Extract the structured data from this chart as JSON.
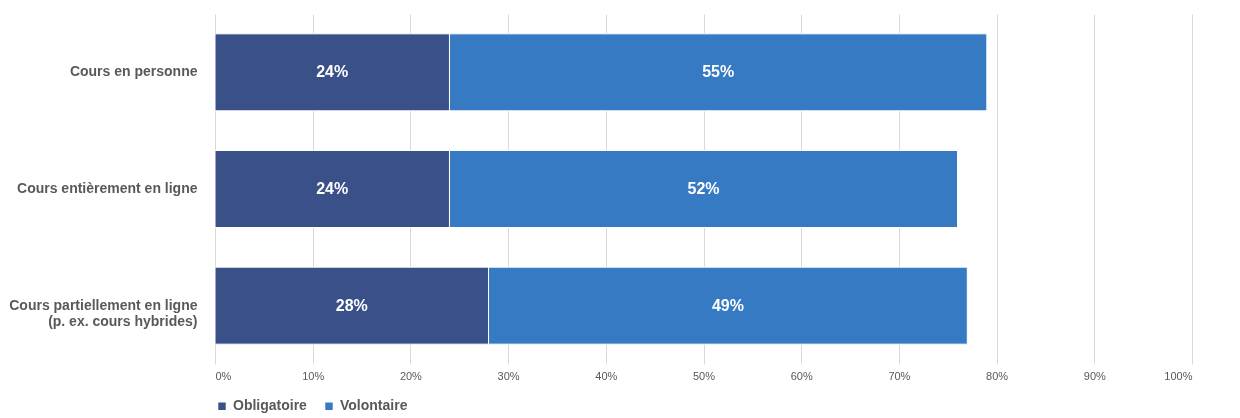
{
  "chart_data": {
    "type": "bar",
    "orientation": "horizontal",
    "stacked": true,
    "categories": [
      "Cours en personne",
      "Cours entièrement en ligne",
      "Cours partiellement en ligne\n(p. ex. cours hybrides)"
    ],
    "series": [
      {
        "name": "Obligatoire",
        "color": "#3a5088",
        "values": [
          24,
          24,
          28
        ],
        "value_labels": [
          "24%",
          "24%",
          "28%"
        ]
      },
      {
        "name": "Volontaire",
        "color": "#357ac2",
        "values": [
          55,
          52,
          49
        ],
        "value_labels": [
          "55%",
          "52%",
          "49%"
        ]
      }
    ],
    "xlim": [
      0,
      100
    ],
    "xticks": [
      {
        "value": 0,
        "label": "0%"
      },
      {
        "value": 10,
        "label": "10%"
      },
      {
        "value": 20,
        "label": "20%"
      },
      {
        "value": 30,
        "label": "30%"
      },
      {
        "value": 40,
        "label": "40%"
      },
      {
        "value": 50,
        "label": "50%"
      },
      {
        "value": 60,
        "label": "60%"
      },
      {
        "value": 70,
        "label": "70%"
      },
      {
        "value": 80,
        "label": "80%"
      },
      {
        "value": 90,
        "label": "90%"
      },
      {
        "value": 100,
        "label": "100%"
      }
    ],
    "grid": "x",
    "legend": "bottom"
  }
}
